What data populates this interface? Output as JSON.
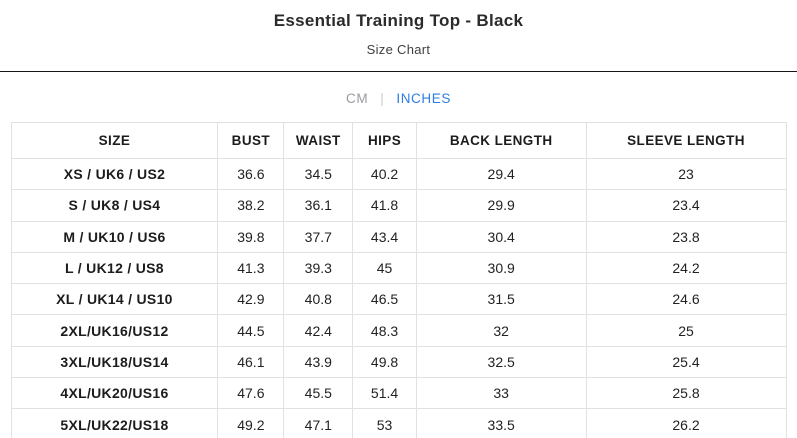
{
  "header": {
    "title": "Essential Training Top - Black",
    "subtitle": "Size Chart"
  },
  "unit_toggle": {
    "cm_label": "CM",
    "separator": "|",
    "inches_label": "INCHES",
    "active_unit": "INCHES"
  },
  "colors": {
    "accent_blue": "#2e7de0",
    "inactive_gray": "#9a9aa0",
    "text_dark": "#2b2b2b",
    "table_border": "#e1e1e1"
  },
  "size_chart": {
    "unit": "INCHES",
    "columns": [
      "SIZE",
      "BUST",
      "WAIST",
      "HIPS",
      "BACK LENGTH",
      "SLEEVE LENGTH"
    ],
    "rows": [
      {
        "size": "XS / UK6 / US2",
        "bust": "36.6",
        "waist": "34.5",
        "hips": "40.2",
        "back_length": "29.4",
        "sleeve_length": "23"
      },
      {
        "size": "S / UK8 / US4",
        "bust": "38.2",
        "waist": "36.1",
        "hips": "41.8",
        "back_length": "29.9",
        "sleeve_length": "23.4"
      },
      {
        "size": "M / UK10 / US6",
        "bust": "39.8",
        "waist": "37.7",
        "hips": "43.4",
        "back_length": "30.4",
        "sleeve_length": "23.8"
      },
      {
        "size": "L / UK12 / US8",
        "bust": "41.3",
        "waist": "39.3",
        "hips": "45",
        "back_length": "30.9",
        "sleeve_length": "24.2"
      },
      {
        "size": "XL / UK14 / US10",
        "bust": "42.9",
        "waist": "40.8",
        "hips": "46.5",
        "back_length": "31.5",
        "sleeve_length": "24.6"
      },
      {
        "size": "2XL/UK16/US12",
        "bust": "44.5",
        "waist": "42.4",
        "hips": "48.3",
        "back_length": "32",
        "sleeve_length": "25"
      },
      {
        "size": "3XL/UK18/US14",
        "bust": "46.1",
        "waist": "43.9",
        "hips": "49.8",
        "back_length": "32.5",
        "sleeve_length": "25.4"
      },
      {
        "size": "4XL/UK20/US16",
        "bust": "47.6",
        "waist": "45.5",
        "hips": "51.4",
        "back_length": "33",
        "sleeve_length": "25.8"
      },
      {
        "size": "5XL/UK22/US18",
        "bust": "49.2",
        "waist": "47.1",
        "hips": "53",
        "back_length": "33.5",
        "sleeve_length": "26.2"
      }
    ]
  }
}
